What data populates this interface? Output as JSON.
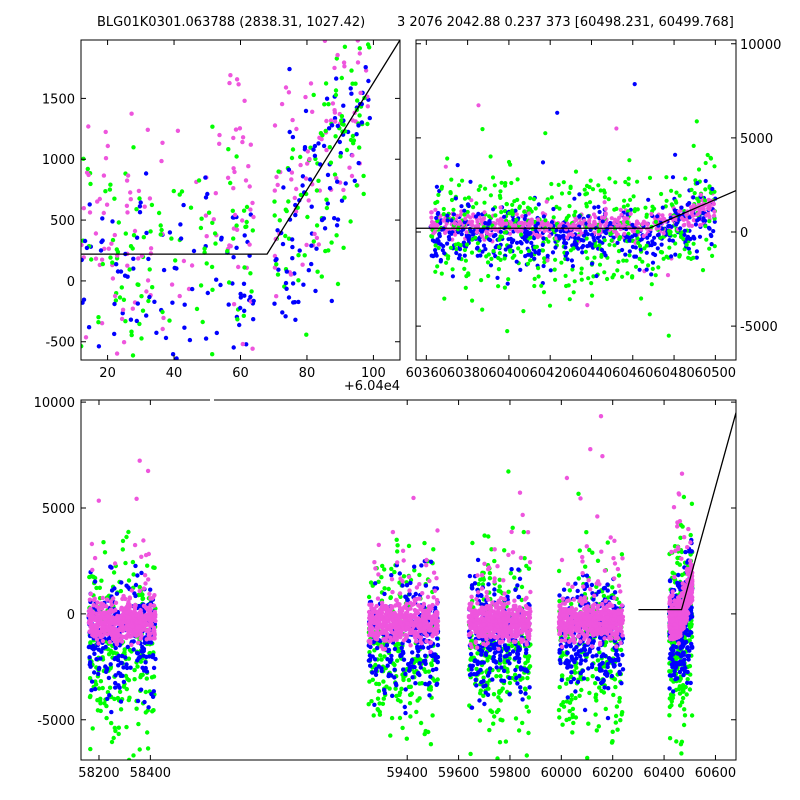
{
  "header": {
    "title_left": "BLG01K0301.063788 (2838.31, 1027.42)",
    "title_right": "3 2076 2042.88 0.237 373 [60498.231, 60499.768]"
  },
  "colors": {
    "green": "#00ff00",
    "blue": "#0000ff",
    "magenta": "#ee55dd",
    "fit_line": "#000000"
  },
  "chart_data": [
    {
      "type": "scatter",
      "name": "zoom-recent",
      "xlim": [
        60412,
        60508
      ],
      "ylim": [
        -650,
        1980
      ],
      "x_offset_label": "+6.04e4",
      "x_ticks": [
        20,
        40,
        60,
        80,
        100
      ],
      "x_tick_labels": [
        "20",
        "40",
        "60",
        "80",
        "100"
      ],
      "y_ticks": [
        -500,
        0,
        500,
        1000,
        1500
      ],
      "y_tick_labels": [
        "-500",
        "0",
        "500",
        "1000",
        "1500"
      ],
      "fit_line": [
        [
          60412,
          220
        ],
        [
          60468,
          220
        ],
        [
          60508,
          1980
        ]
      ],
      "series_colors": [
        "green",
        "blue",
        "magenta"
      ]
    },
    {
      "type": "scatter",
      "name": "season-last",
      "xlim": [
        60355,
        60510
      ],
      "ylim": [
        -6800,
        10200
      ],
      "x_ticks": [
        60360,
        60380,
        60400,
        60420,
        60440,
        60460,
        60480,
        60500
      ],
      "x_tick_labels": [
        "60360",
        "60380",
        "60400",
        "60420",
        "60440",
        "60460",
        "60480",
        "60500"
      ],
      "y_ticks": [
        -5000,
        0,
        5000,
        10000
      ],
      "y_tick_labels": [
        "-5000",
        "0",
        "5000",
        "10000"
      ],
      "fit_line": [
        [
          60355,
          200
        ],
        [
          60468,
          200
        ],
        [
          60510,
          2200
        ]
      ],
      "series_colors": [
        "green",
        "blue",
        "magenta"
      ]
    },
    {
      "type": "scatter",
      "name": "full-lightcurve",
      "xlim": [
        58130,
        60680
      ],
      "ylim": [
        -6900,
        10100
      ],
      "x_ticks": [
        58200,
        58400,
        59400,
        59600,
        59800,
        60000,
        60200,
        60400,
        60600
      ],
      "x_tick_labels": [
        "58200",
        "58400",
        "59400",
        "59600",
        "59800",
        "60000",
        "60200",
        "60400",
        "60600"
      ],
      "y_ticks": [
        -5000,
        0,
        5000,
        10000
      ],
      "y_tick_labels": [
        "-5000",
        "0",
        "5000",
        "10000"
      ],
      "fit_line": [
        [
          60300,
          200
        ],
        [
          60468,
          200
        ],
        [
          60680,
          9500
        ]
      ],
      "seasons": [
        [
          58160,
          58420
        ],
        [
          59250,
          59520
        ],
        [
          59640,
          59880
        ],
        [
          59990,
          60240
        ],
        [
          60420,
          60510
        ]
      ],
      "series_colors": [
        "green",
        "blue",
        "magenta"
      ]
    }
  ]
}
